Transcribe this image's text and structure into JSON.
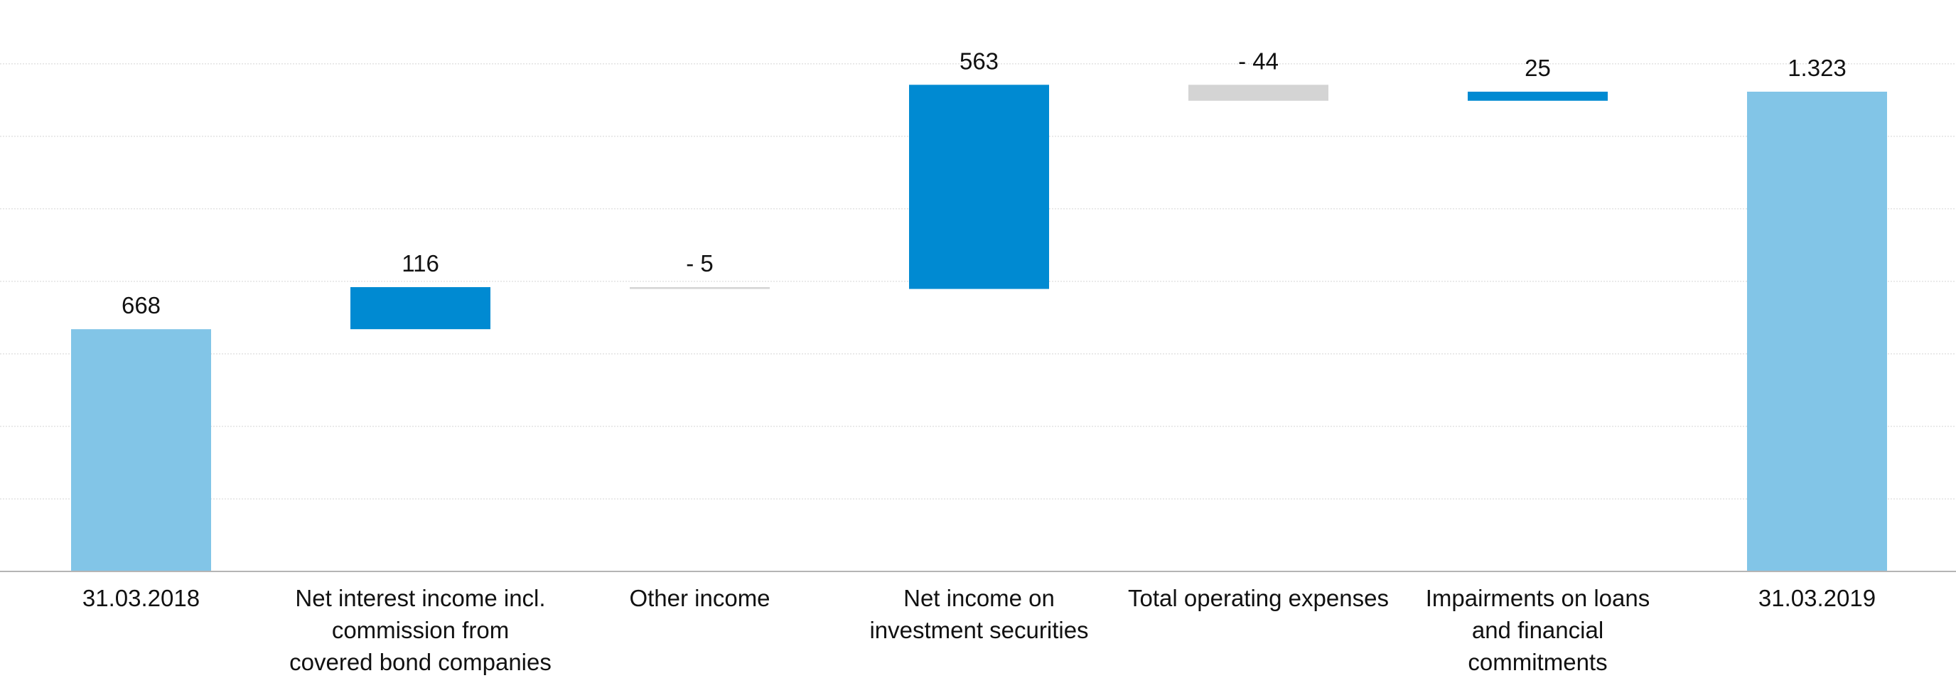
{
  "chart_data": {
    "type": "bar",
    "subtype": "waterfall",
    "title": "",
    "xlabel": "",
    "ylabel": "",
    "ylim": [
      0,
      1600
    ],
    "gridlines": [
      200,
      400,
      600,
      800,
      1000,
      1200,
      1400,
      1600
    ],
    "grid": true,
    "legend": "none",
    "categories": [
      "31.03.2018",
      "Net interest income incl. commission from covered bond companies",
      "Other income",
      "Net income on investment securities",
      "Total operating expenses",
      "Impairments on loans and financial commitments",
      "31.03.2019"
    ],
    "category_lines": [
      [
        "31.03.2018"
      ],
      [
        "Net interest income incl.",
        "commission from",
        "covered bond companies"
      ],
      [
        "Other income"
      ],
      [
        "Net income on",
        "investment securities"
      ],
      [
        "Total operating expenses"
      ],
      [
        "Impairments on loans",
        "and financial",
        "commitments"
      ],
      [
        "31.03.2019"
      ]
    ],
    "values": [
      668,
      116,
      -5,
      563,
      -44,
      25,
      1323
    ],
    "bar_roles": [
      "total",
      "delta",
      "delta",
      "delta",
      "delta",
      "delta",
      "total"
    ],
    "value_labels": [
      "668",
      "116",
      "- 5",
      "563",
      "- 44",
      "25",
      "1.323"
    ],
    "colors": {
      "total": "#82c5e7",
      "increase": "#008ad2",
      "decrease": "#d4d4d4"
    }
  }
}
